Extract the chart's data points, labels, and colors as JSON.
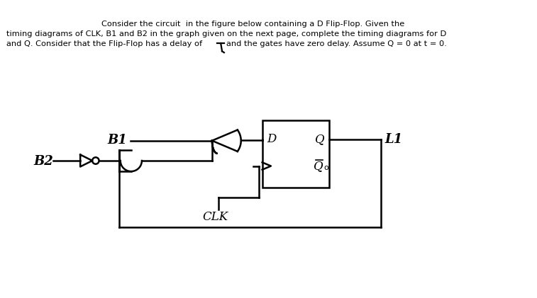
{
  "bg_color": "#ffffff",
  "line_color": "#000000",
  "title1": "Consider the circuit  in the figure below containing a D Flip-Flop. Given the",
  "title2": "timing diagrams of CLK, B1 and B2 in the graph given on the next page, complete the timing diagrams for D",
  "title3_pre": "and Q. Consider that the Flip-Flop has a delay of",
  "title3_post": "and the gates have zero delay. Assume Q = 0 at t = 0.",
  "label_B1": "B1",
  "label_B2": "B2",
  "label_D": "D",
  "label_Q": "Q",
  "label_CLK": "CLK",
  "label_L1": "L1",
  "lw": 1.8
}
